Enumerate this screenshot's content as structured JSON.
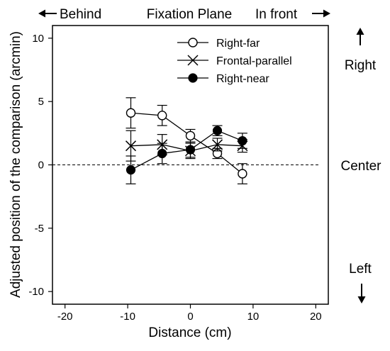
{
  "chart_data": {
    "type": "scatter",
    "title": "",
    "xlabel": "Distance (cm)",
    "ylabel": "Adjusted position of the comparison (arcmin)",
    "xlim": [
      -22,
      22
    ],
    "ylim": [
      -11,
      11
    ],
    "xticks": [
      "-20",
      "-10",
      "0",
      "10",
      "20"
    ],
    "yticks": [
      "-10",
      "-5",
      "0",
      "5",
      "10"
    ],
    "reference_line": {
      "y": 0,
      "style": "dashed"
    },
    "top_annotations": {
      "left": "Behind",
      "center": "Fixation Plane",
      "right": "In front",
      "left_arrow": "left-arrow",
      "right_arrow": "right-arrow"
    },
    "right_annotations": {
      "top": "Right",
      "middle": "Center",
      "bottom": "Left",
      "up_arrow": "up-arrow",
      "down_arrow": "down-arrow"
    },
    "legend_position": "top-right",
    "series": [
      {
        "name": "Right-far",
        "marker": "open-circle",
        "x": [
          -9.5,
          -4.5,
          0,
          4.3,
          8.3
        ],
        "y": [
          4.1,
          3.9,
          2.3,
          0.9,
          -0.7
        ],
        "err": [
          1.2,
          0.8,
          0.5,
          0.4,
          0.8
        ]
      },
      {
        "name": "Frontal-parallel",
        "marker": "cross",
        "x": [
          -9.5,
          -4.5,
          0,
          4.3,
          8.3
        ],
        "y": [
          1.5,
          1.6,
          1.1,
          1.6,
          1.5
        ],
        "err": [
          1.2,
          0.8,
          0.6,
          0.5,
          0.5
        ]
      },
      {
        "name": "Right-near",
        "marker": "filled-circle",
        "x": [
          -9.5,
          -4.5,
          0,
          4.3,
          8.3
        ],
        "y": [
          -0.4,
          0.9,
          1.2,
          2.7,
          1.9
        ],
        "err": [
          1.1,
          0.8,
          0.6,
          0.4,
          0.6
        ]
      }
    ]
  }
}
